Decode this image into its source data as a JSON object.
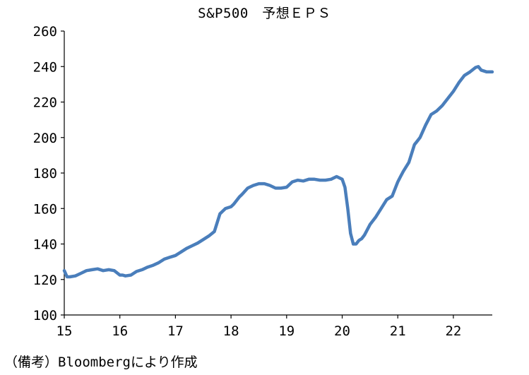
{
  "chart_data": {
    "type": "line",
    "title": "S&P500　予想ＥＰＳ",
    "xlabel": "",
    "ylabel": "",
    "ylim": [
      100,
      260
    ],
    "xlim": [
      15,
      22.7
    ],
    "yticks": [
      100,
      120,
      140,
      160,
      180,
      200,
      220,
      240,
      260
    ],
    "xticks": [
      15,
      16,
      17,
      18,
      19,
      20,
      21,
      22
    ],
    "grid": false,
    "legend": "none",
    "line_color": "#4a7ebb",
    "series": [
      {
        "x": [
          15.0,
          15.05,
          15.1,
          15.2,
          15.3,
          15.4,
          15.5,
          15.6,
          15.7,
          15.8,
          15.9,
          16.0,
          16.05,
          16.1,
          16.2,
          16.3,
          16.4,
          16.5,
          16.6,
          16.7,
          16.8,
          16.9,
          17.0,
          17.1,
          17.2,
          17.3,
          17.4,
          17.5,
          17.6,
          17.7,
          17.8,
          17.9,
          18.0,
          18.05,
          18.1,
          18.15,
          18.2,
          18.3,
          18.4,
          18.5,
          18.6,
          18.7,
          18.8,
          18.85,
          18.9,
          19.0,
          19.1,
          19.2,
          19.3,
          19.4,
          19.5,
          19.6,
          19.7,
          19.8,
          19.9,
          20.0,
          20.05,
          20.1,
          20.15,
          20.2,
          20.25,
          20.3,
          20.35,
          20.4,
          20.5,
          20.6,
          20.7,
          20.8,
          20.9,
          21.0,
          21.05,
          21.1,
          21.2,
          21.3,
          21.35,
          21.4,
          21.5,
          21.6,
          21.65,
          21.7,
          21.8,
          21.9,
          22.0,
          22.1,
          22.2,
          22.3,
          22.4,
          22.45,
          22.5,
          22.6,
          22.7
        ],
        "y": [
          125,
          121.5,
          121.5,
          122,
          123.5,
          125,
          125.5,
          126,
          125,
          125.5,
          125,
          122.5,
          122.5,
          122,
          122.5,
          124.5,
          125.5,
          127,
          128,
          129.5,
          131.5,
          132.5,
          133.5,
          135.5,
          137.5,
          139,
          140.5,
          142.5,
          144.5,
          147,
          157,
          160,
          161,
          162.5,
          164.5,
          166.5,
          168,
          171.5,
          173,
          174,
          174,
          173,
          171.5,
          171.5,
          171.5,
          172,
          175,
          176,
          175.5,
          176.5,
          176.5,
          176,
          176,
          176.5,
          178,
          176.5,
          172,
          160,
          146,
          140,
          140,
          142,
          143,
          145,
          151,
          155,
          160,
          165,
          167,
          175,
          178,
          181,
          186,
          196,
          198,
          200,
          207,
          213,
          214,
          215,
          218,
          222,
          226,
          231,
          235,
          237,
          239.5,
          240,
          238,
          237,
          237
        ]
      }
    ],
    "annotation": "（備考）Bloombergにより作成"
  }
}
